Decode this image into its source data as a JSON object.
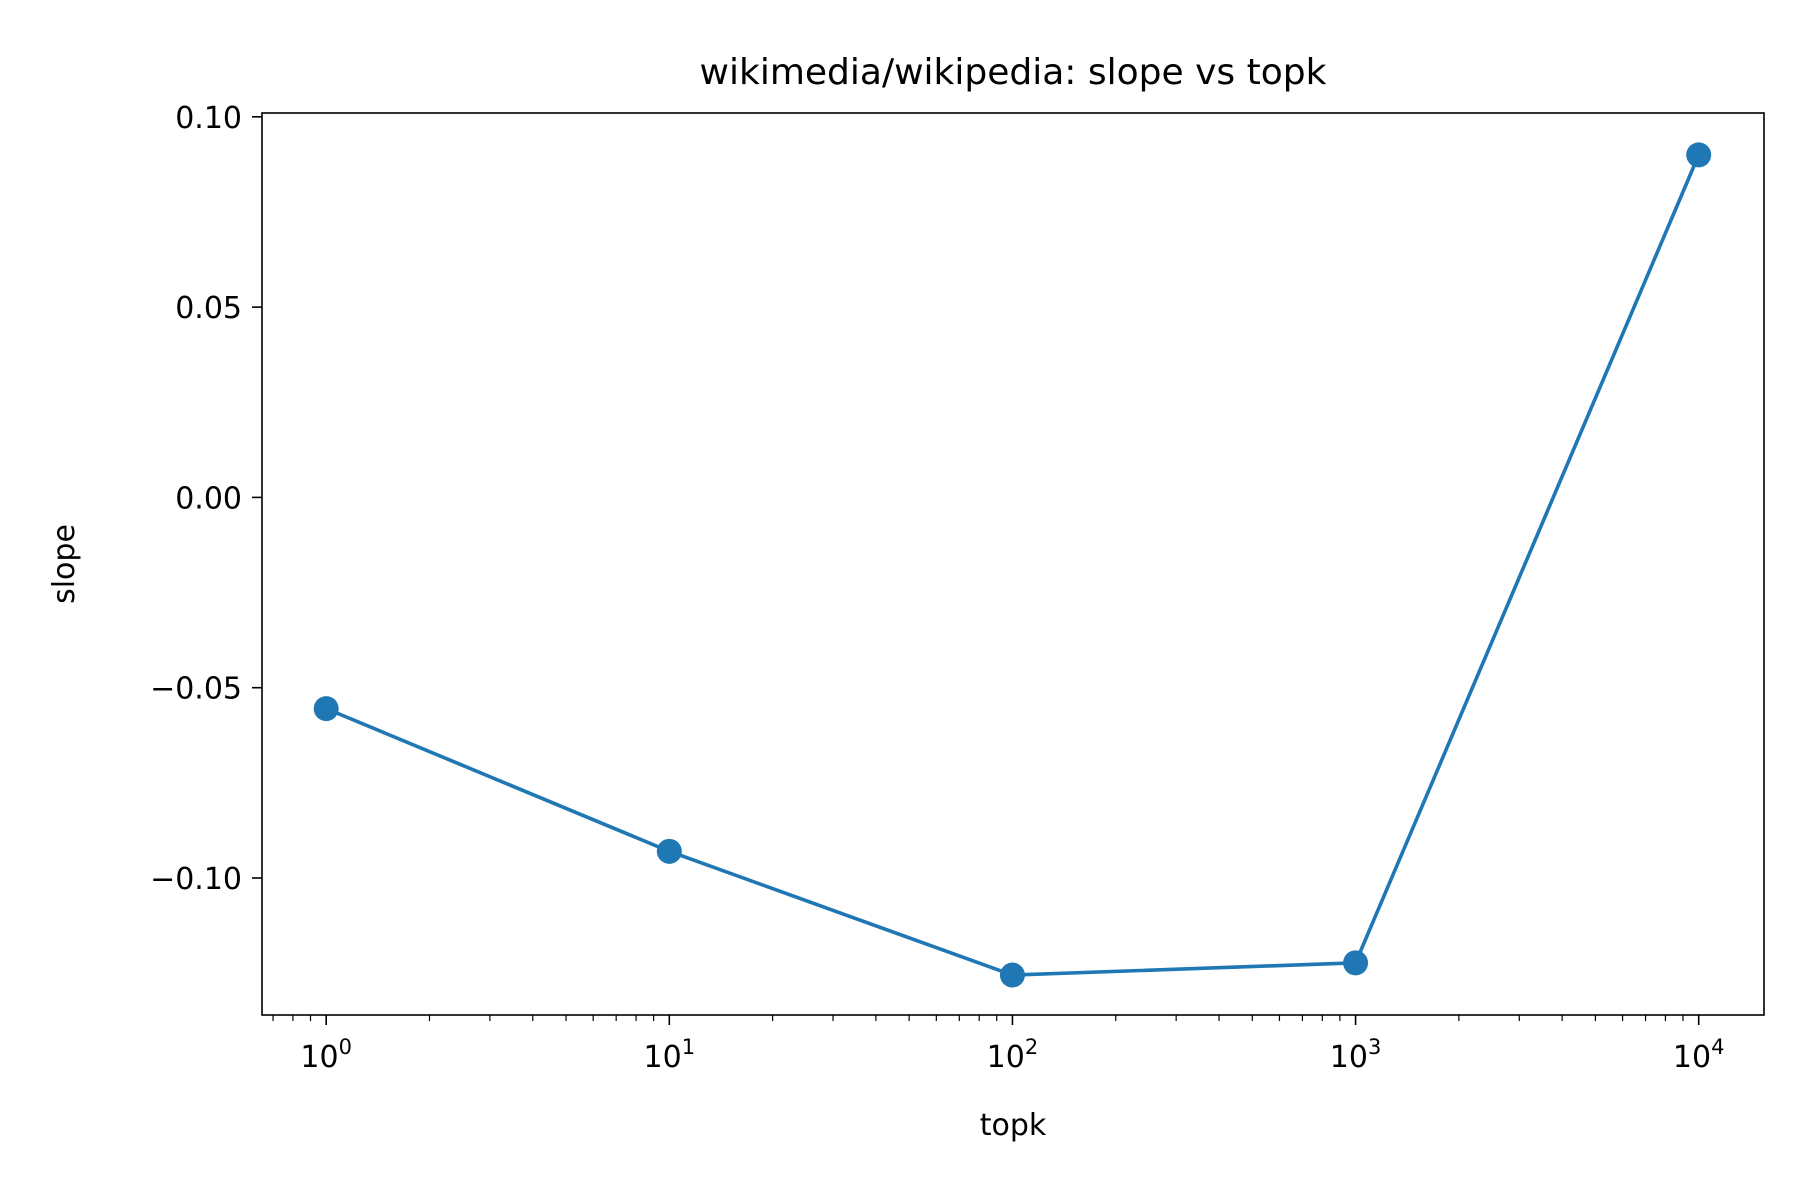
{
  "chart_data": {
    "type": "line",
    "title": "wikimedia/wikipedia: slope vs topk",
    "xlabel": "topk",
    "ylabel": "slope",
    "xscale": "log",
    "xlim": [
      0.65,
      15500
    ],
    "ylim": [
      -0.136,
      0.101
    ],
    "x_ticks": [
      {
        "value": 1,
        "base": "10",
        "exp": "0"
      },
      {
        "value": 10,
        "base": "10",
        "exp": "1"
      },
      {
        "value": 100,
        "base": "10",
        "exp": "2"
      },
      {
        "value": 1000,
        "base": "10",
        "exp": "3"
      },
      {
        "value": 10000,
        "base": "10",
        "exp": "4"
      }
    ],
    "y_ticks": [
      {
        "value": 0.1,
        "label": "0.10"
      },
      {
        "value": 0.05,
        "label": "0.05"
      },
      {
        "value": 0.0,
        "label": "0.00"
      },
      {
        "value": -0.05,
        "label": "−0.05"
      },
      {
        "value": -0.1,
        "label": "−0.10"
      }
    ],
    "grid": false,
    "series": [
      {
        "color": "#1f77b4",
        "marker": "circle",
        "x": [
          1,
          10,
          100,
          1000,
          10000
        ],
        "y": [
          -0.0555,
          -0.093,
          -0.1255,
          -0.1223,
          0.09
        ]
      }
    ]
  }
}
